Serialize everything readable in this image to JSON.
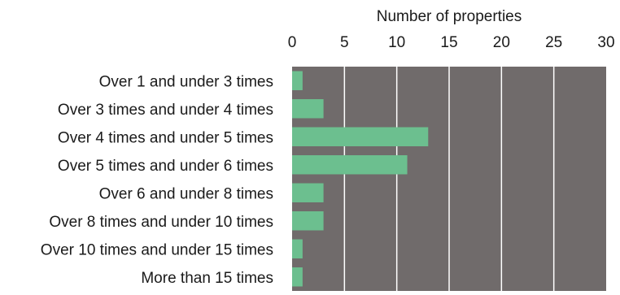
{
  "chart_data": {
    "type": "bar",
    "orientation": "horizontal",
    "title": "",
    "xlabel": "Number of properties",
    "ylabel": "",
    "xlim": [
      0,
      30
    ],
    "xticks": [
      0,
      5,
      10,
      15,
      20,
      25,
      30
    ],
    "x_axis_position": "top",
    "grid": true,
    "categories": [
      "Over 1 and under 3 times",
      "Over 3 times and under 4 times",
      "Over 4 times and under 5 times",
      "Over 5 times and under 6 times",
      "Over 6 and under 8 times",
      "Over 8 times and under 10 times",
      "Over 10 times and under 15 times",
      "More than 15 times"
    ],
    "values": [
      1,
      3,
      13,
      11,
      3,
      3,
      1,
      1
    ],
    "colors": {
      "bar": "#6cbf8f",
      "plot_background": "#706b6b",
      "gridline": "#ffffff",
      "text": "#1a1a1a"
    }
  }
}
